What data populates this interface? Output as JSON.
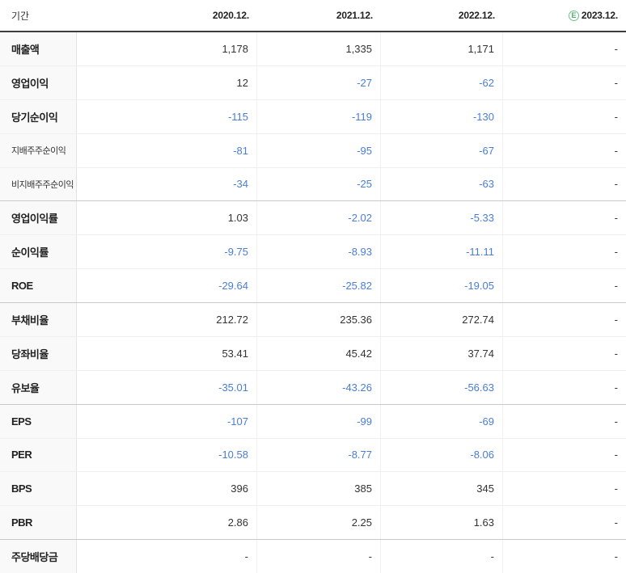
{
  "table": {
    "corner_label": "기간",
    "estimate_badge": "E",
    "columns": [
      "2020.12.",
      "2021.12.",
      "2022.12.",
      "2023.12."
    ],
    "estimate_column": "2023.12.",
    "colors": {
      "negative_value": "#4a7dd4",
      "normal_value": "#333333",
      "header_border": "#3c3c3c",
      "group_border": "#c9c9c9",
      "row_border": "#efefef",
      "label_background": "#f9f9f9",
      "estimate_green": "#4fae6e"
    },
    "rows": [
      {
        "label": "매출액",
        "small": false,
        "group_start": false,
        "values": [
          "1,178",
          "1,335",
          "1,171",
          "-"
        ]
      },
      {
        "label": "영업이익",
        "small": false,
        "group_start": false,
        "values": [
          "12",
          "-27",
          "-62",
          "-"
        ]
      },
      {
        "label": "당기순이익",
        "small": false,
        "group_start": false,
        "values": [
          "-115",
          "-119",
          "-130",
          "-"
        ]
      },
      {
        "label": "지배주주순이익",
        "small": true,
        "group_start": false,
        "values": [
          "-81",
          "-95",
          "-67",
          "-"
        ]
      },
      {
        "label": "비지배주주순이익",
        "small": true,
        "group_start": false,
        "values": [
          "-34",
          "-25",
          "-63",
          "-"
        ]
      },
      {
        "label": "영업이익률",
        "small": false,
        "group_start": true,
        "values": [
          "1.03",
          "-2.02",
          "-5.33",
          "-"
        ]
      },
      {
        "label": "순이익률",
        "small": false,
        "group_start": false,
        "values": [
          "-9.75",
          "-8.93",
          "-11.11",
          "-"
        ]
      },
      {
        "label": "ROE",
        "small": false,
        "group_start": false,
        "values": [
          "-29.64",
          "-25.82",
          "-19.05",
          "-"
        ]
      },
      {
        "label": "부채비율",
        "small": false,
        "group_start": true,
        "values": [
          "212.72",
          "235.36",
          "272.74",
          "-"
        ]
      },
      {
        "label": "당좌비율",
        "small": false,
        "group_start": false,
        "values": [
          "53.41",
          "45.42",
          "37.74",
          "-"
        ]
      },
      {
        "label": "유보율",
        "small": false,
        "group_start": false,
        "values": [
          "-35.01",
          "-43.26",
          "-56.63",
          "-"
        ]
      },
      {
        "label": "EPS",
        "small": false,
        "group_start": true,
        "values": [
          "-107",
          "-99",
          "-69",
          "-"
        ]
      },
      {
        "label": "PER",
        "small": false,
        "group_start": false,
        "values": [
          "-10.58",
          "-8.77",
          "-8.06",
          "-"
        ]
      },
      {
        "label": "BPS",
        "small": false,
        "group_start": false,
        "values": [
          "396",
          "385",
          "345",
          "-"
        ]
      },
      {
        "label": "PBR",
        "small": false,
        "group_start": false,
        "values": [
          "2.86",
          "2.25",
          "1.63",
          "-"
        ]
      },
      {
        "label": "주당배당금",
        "small": false,
        "group_start": true,
        "values": [
          "-",
          "-",
          "-",
          "-"
        ]
      }
    ]
  }
}
